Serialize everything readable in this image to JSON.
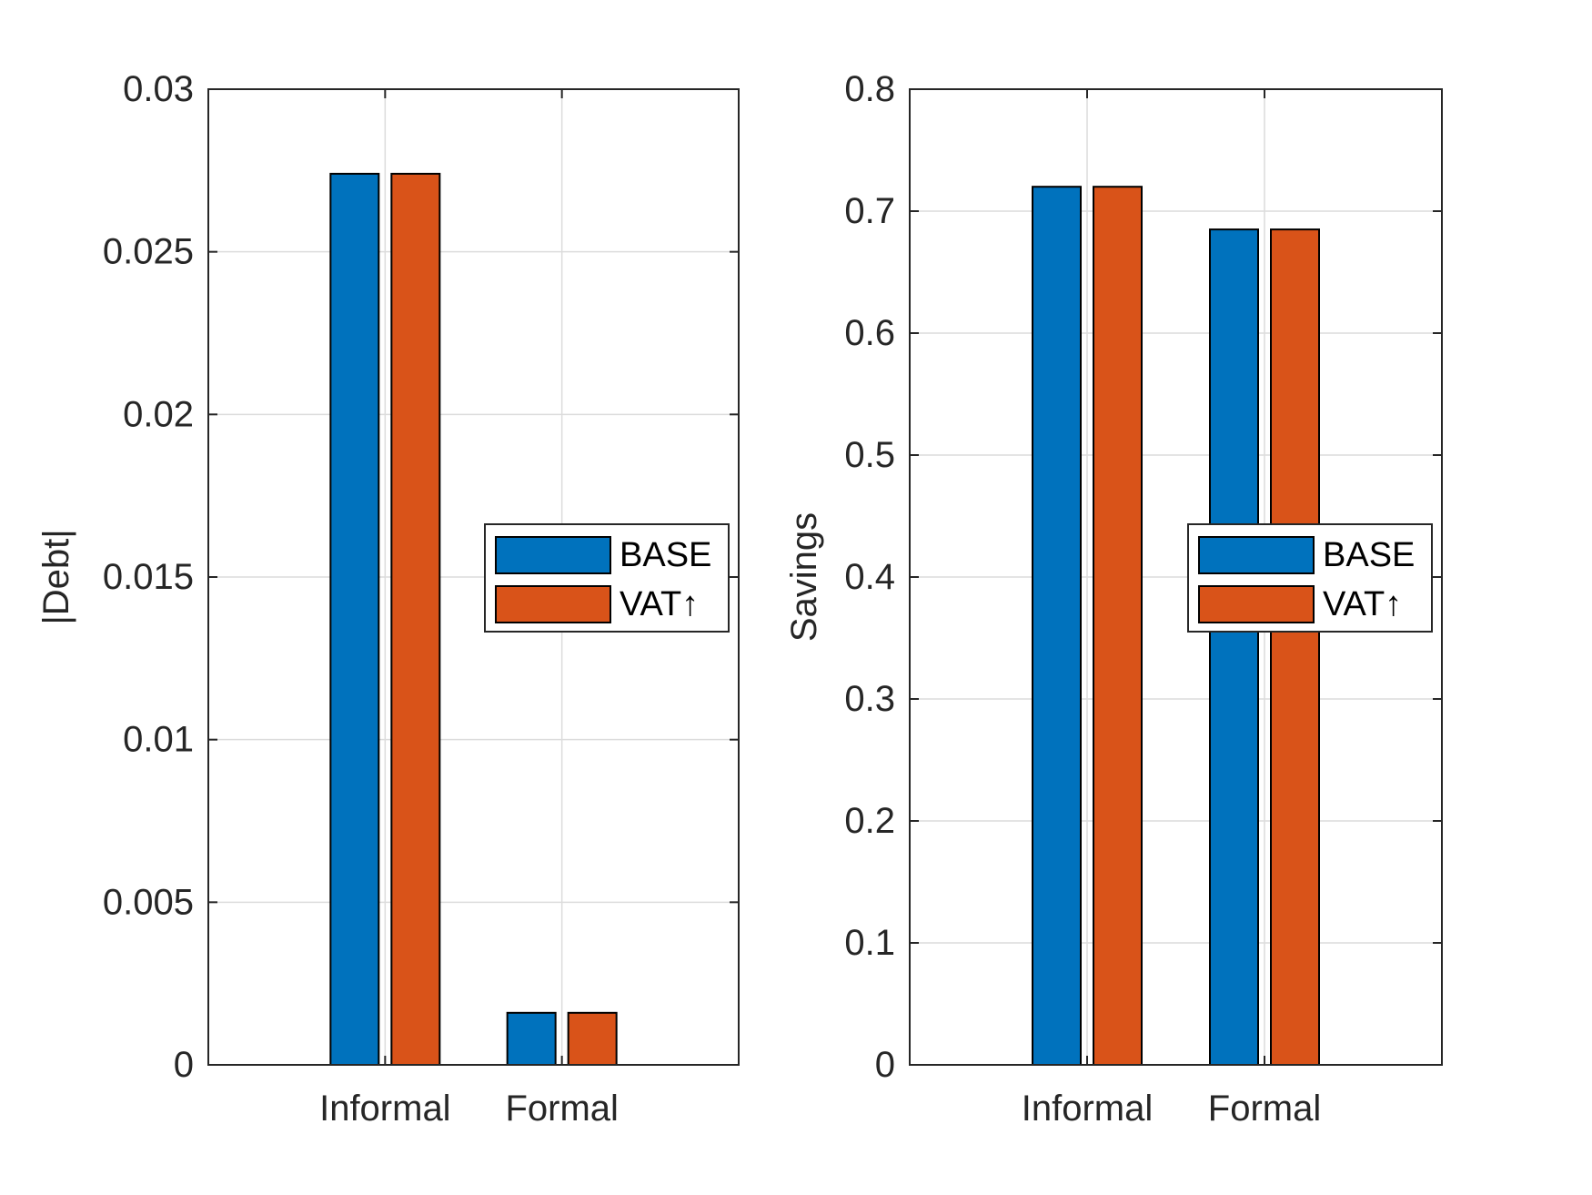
{
  "chart_data": [
    {
      "type": "bar",
      "categories": [
        "Informal",
        "Formal"
      ],
      "series": [
        {
          "name": "BASE",
          "values": [
            0.0274,
            0.0016
          ],
          "color": "#0072BD"
        },
        {
          "name": "VAT↑",
          "values": [
            0.0274,
            0.0016
          ],
          "color": "#D95319"
        }
      ],
      "title": "",
      "xlabel": "",
      "ylabel": "|Debt|",
      "ylim": [
        0,
        0.03
      ],
      "yticks": [
        0,
        0.005,
        0.01,
        0.015,
        0.02,
        0.025,
        0.03
      ],
      "ytick_labels": [
        "0",
        "0.005",
        "0.01",
        "0.015",
        "0.02",
        "0.025",
        "0.03"
      ],
      "grid": true,
      "legend_position": "right"
    },
    {
      "type": "bar",
      "categories": [
        "Informal",
        "Formal"
      ],
      "series": [
        {
          "name": "BASE",
          "values": [
            0.72,
            0.685
          ],
          "color": "#0072BD"
        },
        {
          "name": "VAT↑",
          "values": [
            0.72,
            0.685
          ],
          "color": "#D95319"
        }
      ],
      "title": "",
      "xlabel": "",
      "ylabel": "Savings",
      "ylim": [
        0,
        0.8
      ],
      "yticks": [
        0,
        0.1,
        0.2,
        0.3,
        0.4,
        0.5,
        0.6,
        0.7,
        0.8
      ],
      "ytick_labels": [
        "0",
        "0.1",
        "0.2",
        "0.3",
        "0.4",
        "0.5",
        "0.6",
        "0.7",
        "0.8"
      ],
      "grid": true,
      "legend_position": "right"
    }
  ]
}
